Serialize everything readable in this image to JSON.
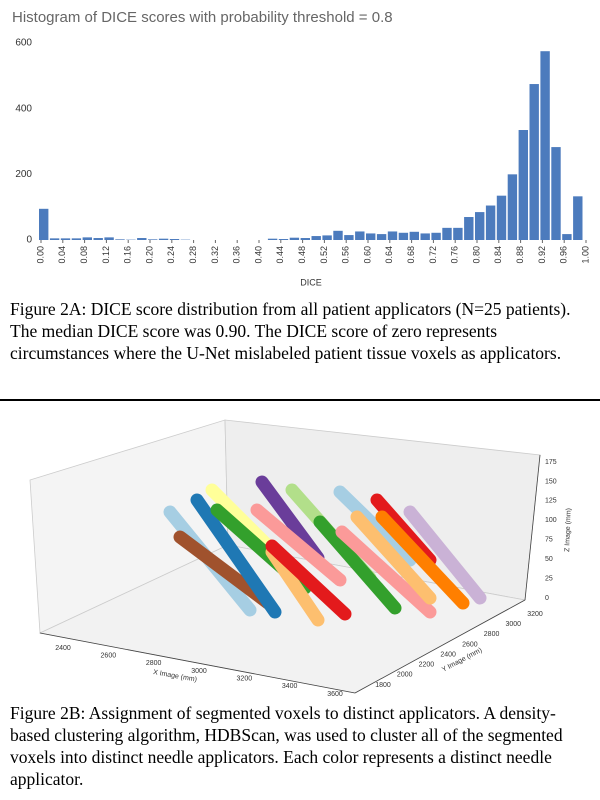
{
  "chart_data": {
    "type": "histogram",
    "title": "Histogram of DICE scores with probability threshold = 0.8",
    "xlabel": "DICE",
    "bins": [
      0,
      0.02,
      0.04,
      0.06,
      0.08,
      0.1,
      0.12,
      0.14,
      0.16,
      0.18,
      0.2,
      0.22,
      0.24,
      0.26,
      0.28,
      0.3,
      0.32,
      0.34,
      0.36,
      0.38,
      0.4,
      0.42,
      0.44,
      0.46,
      0.48,
      0.5,
      0.52,
      0.54,
      0.56,
      0.58,
      0.6,
      0.62,
      0.64,
      0.66,
      0.68,
      0.7,
      0.72,
      0.74,
      0.76,
      0.78,
      0.8,
      0.82,
      0.84,
      0.86,
      0.88,
      0.9,
      0.92,
      0.94,
      0.96,
      0.98,
      1
    ],
    "counts": [
      95,
      5,
      5,
      5,
      8,
      6,
      8,
      2,
      1,
      6,
      2,
      4,
      3,
      1,
      0,
      0,
      0,
      0,
      0,
      0,
      0,
      4,
      3,
      7,
      6,
      12,
      14,
      28,
      15,
      26,
      20,
      18,
      26,
      22,
      25,
      20,
      22,
      37,
      37,
      70,
      85,
      105,
      135,
      200,
      335,
      475,
      575,
      283,
      18,
      133
    ],
    "color": "#4c7bbd",
    "xlim": [
      0,
      1
    ],
    "ylim": [
      0,
      600
    ],
    "xticks": [
      {
        "value": 0,
        "label": "0.00"
      },
      0.04,
      0.08,
      0.12,
      0.16,
      {
        "value": 0.2,
        "label": "0.20"
      },
      0.24,
      0.28,
      0.32,
      0.36,
      {
        "value": 0.4,
        "label": "0.40"
      },
      0.44,
      0.48,
      0.52,
      0.56,
      {
        "value": 0.6,
        "label": "0.60"
      },
      0.64,
      0.68,
      0.72,
      0.76,
      {
        "value": 0.8,
        "label": "0.80"
      },
      0.84,
      0.88,
      0.92,
      0.96,
      {
        "value": 1,
        "label": "1.00"
      }
    ],
    "yticks": [
      0,
      200,
      400,
      600
    ],
    "grid": false
  },
  "figure_2a_caption": "Figure 2A: DICE score distribution from all patient applicators (N=25 patients). The median DICE score was 0.90. The DICE score of zero represents circumstances where the U-Net mislabeled patient tissue voxels as applicators.",
  "figure_2b": {
    "x_label": "X Image (mm)",
    "y_label": "Y Image (mm)",
    "z_label": "Z Image (mm)",
    "x_ticks": [
      2400,
      2600,
      2800,
      3000,
      3200,
      3400,
      3600
    ],
    "y_ticks": [
      1800,
      2000,
      2200,
      2400,
      2600,
      2800,
      3000,
      3200
    ],
    "z_ticks": [
      0,
      25,
      50,
      75,
      100,
      125,
      150,
      175
    ],
    "caption": "Figure 2B: Assignment of segmented voxels to distinct applicators. A density-based clustering algorithm, HDBScan, was used to cluster all of the segmented voxels into distinct needle applicators. Each color represents a distinct needle applicator."
  }
}
